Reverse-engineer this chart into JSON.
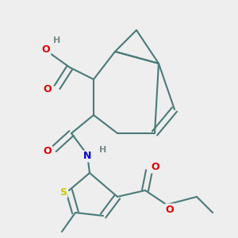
{
  "bg_color": "#eeeeee",
  "bond_color": "#4a7a7a",
  "bond_width": 1.5,
  "atom_colors": {
    "O": "#dd0000",
    "N": "#0000cc",
    "S": "#cccc00",
    "H": "#7a8a8a",
    "C": "#4a7a7a"
  },
  "font_size": 9.0
}
